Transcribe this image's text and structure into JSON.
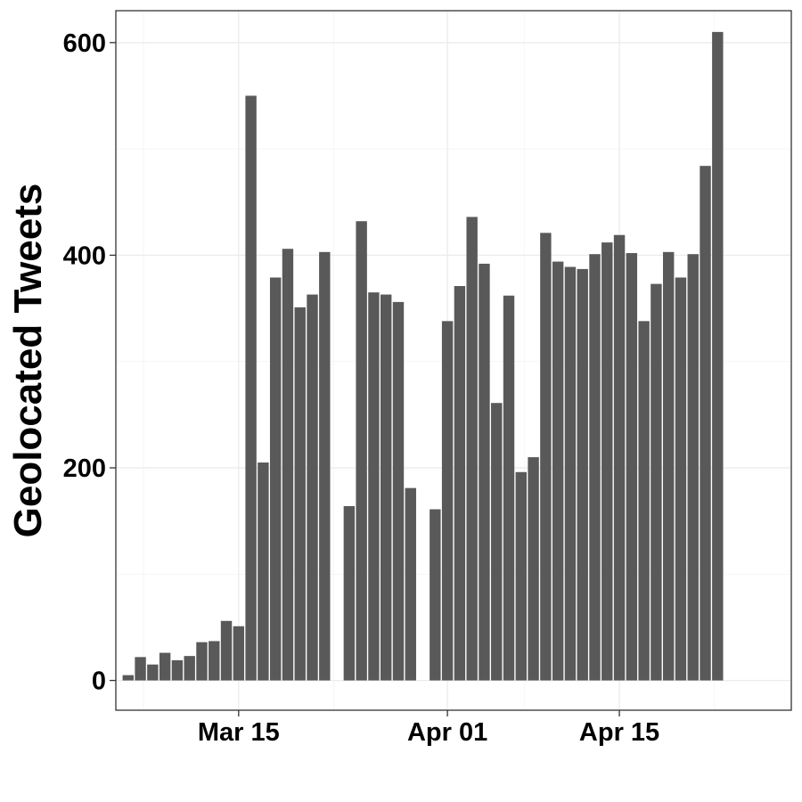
{
  "chart_data": {
    "type": "bar",
    "title": "",
    "xlabel": "",
    "ylabel": "Geolocated Tweets",
    "x_tick_labels": [
      "Mar 15",
      "Apr 01",
      "Apr 15"
    ],
    "x_tick_dates": [
      "2020-03-15",
      "2020-04-01",
      "2020-04-15"
    ],
    "y_ticks": [
      0,
      200,
      400,
      600
    ],
    "ylim": [
      -28,
      630
    ],
    "xlim": [
      "2020-03-05",
      "2020-04-29"
    ],
    "grid": true,
    "legend": "none",
    "bar_color": "#595959",
    "x": [
      "2020-03-06",
      "2020-03-07",
      "2020-03-08",
      "2020-03-09",
      "2020-03-10",
      "2020-03-11",
      "2020-03-12",
      "2020-03-13",
      "2020-03-14",
      "2020-03-15",
      "2020-03-16",
      "2020-03-17",
      "2020-03-18",
      "2020-03-19",
      "2020-03-20",
      "2020-03-21",
      "2020-03-22",
      "2020-03-23",
      "2020-03-24",
      "2020-03-25",
      "2020-03-26",
      "2020-03-27",
      "2020-03-28",
      "2020-03-29",
      "2020-03-30",
      "2020-03-31",
      "2020-04-01",
      "2020-04-02",
      "2020-04-03",
      "2020-04-04",
      "2020-04-05",
      "2020-04-06",
      "2020-04-07",
      "2020-04-08",
      "2020-04-09",
      "2020-04-10",
      "2020-04-11",
      "2020-04-12",
      "2020-04-13",
      "2020-04-14",
      "2020-04-15",
      "2020-04-16",
      "2020-04-17",
      "2020-04-18",
      "2020-04-19",
      "2020-04-20",
      "2020-04-21",
      "2020-04-22",
      "2020-04-23",
      "2020-04-24",
      "2020-04-25",
      "2020-04-26"
    ],
    "values": [
      5,
      22,
      15,
      26,
      19,
      23,
      36,
      37,
      56,
      51,
      550,
      205,
      379,
      406,
      351,
      363,
      403,
      0,
      164,
      432,
      365,
      363,
      356,
      181,
      0,
      161,
      338,
      371,
      436,
      392,
      261,
      362,
      196,
      210,
      421,
      394,
      389,
      387,
      401,
      412,
      419,
      402,
      338,
      373,
      403,
      379,
      401,
      484,
      610,
      0,
      0,
      0
    ]
  }
}
